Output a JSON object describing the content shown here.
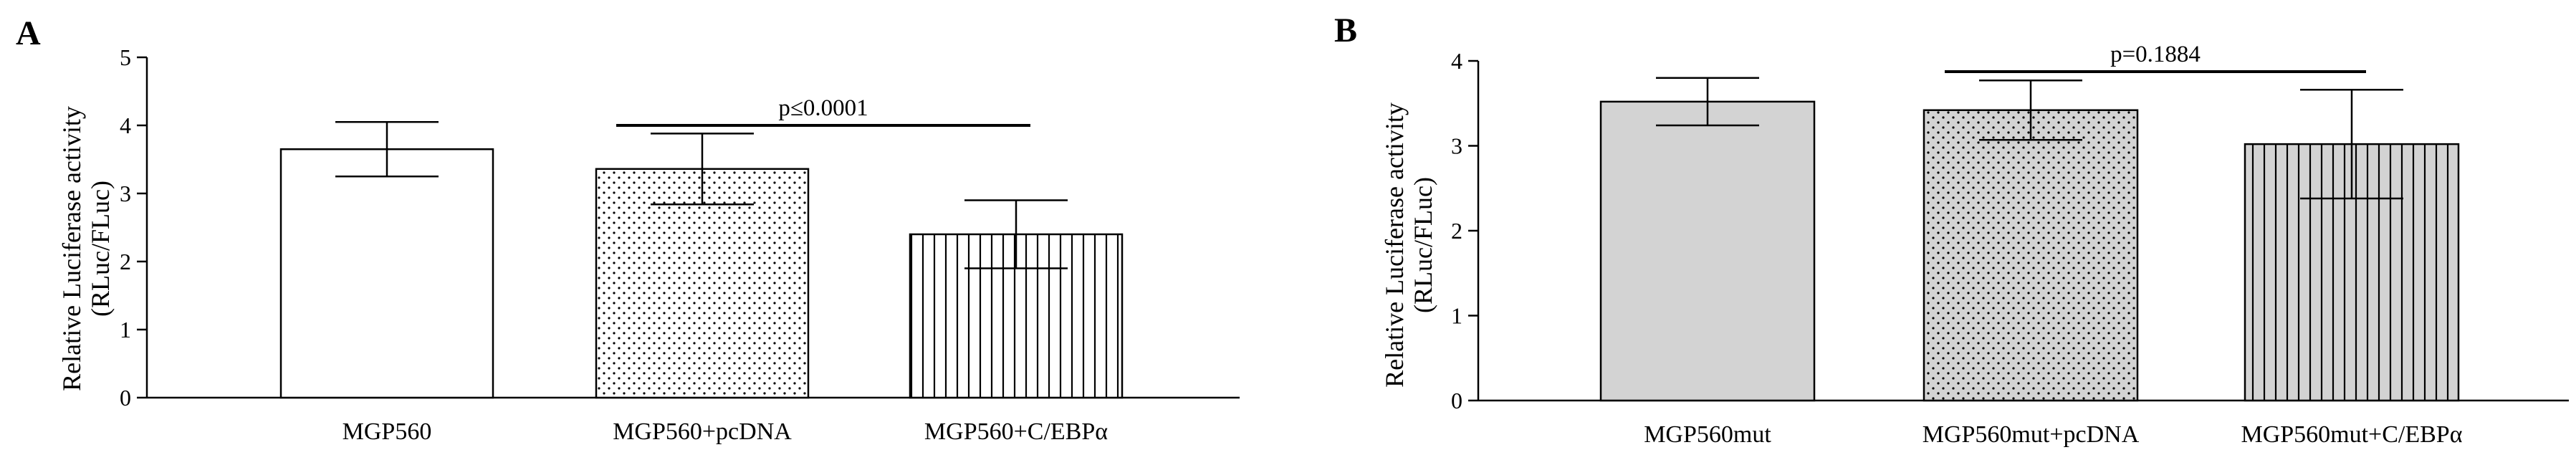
{
  "chart_data": [
    {
      "type": "bar",
      "panel_label": "A",
      "ylabel_line1": "Relative Luciferase activity",
      "ylabel_line2": "(RLuc/FLuc)",
      "ylim": [
        0,
        5
      ],
      "yticks": [
        0,
        1,
        2,
        3,
        4,
        5
      ],
      "categories": [
        "MGP560",
        "MGP560+pcDNA",
        "MGP560+C/EBPα"
      ],
      "values": [
        3.65,
        3.36,
        2.4
      ],
      "errors": [
        0.4,
        0.52,
        0.5
      ],
      "fills": [
        "open",
        "dots",
        "vlines"
      ],
      "bar_color": "#ffffff",
      "significance": {
        "text": "p≤0.0001",
        "from": 1,
        "to": 2
      }
    },
    {
      "type": "bar",
      "panel_label": "B",
      "ylabel_line1": "Relative Luciferase activity",
      "ylabel_line2": "(RLuc/FLuc)",
      "ylim": [
        0,
        4
      ],
      "yticks": [
        0,
        1,
        2,
        3,
        4
      ],
      "categories": [
        "MGP560mut",
        "MGP560mut+pcDNA",
        "MGP560mut+C/EBPα"
      ],
      "values": [
        3.52,
        3.42,
        3.02
      ],
      "errors": [
        0.28,
        0.35,
        0.64
      ],
      "fills": [
        "solid",
        "dots",
        "vlines"
      ],
      "bar_color": "#d3d3d3",
      "significance": {
        "text": "p=0.1884",
        "from": 1,
        "to": 2
      }
    }
  ]
}
